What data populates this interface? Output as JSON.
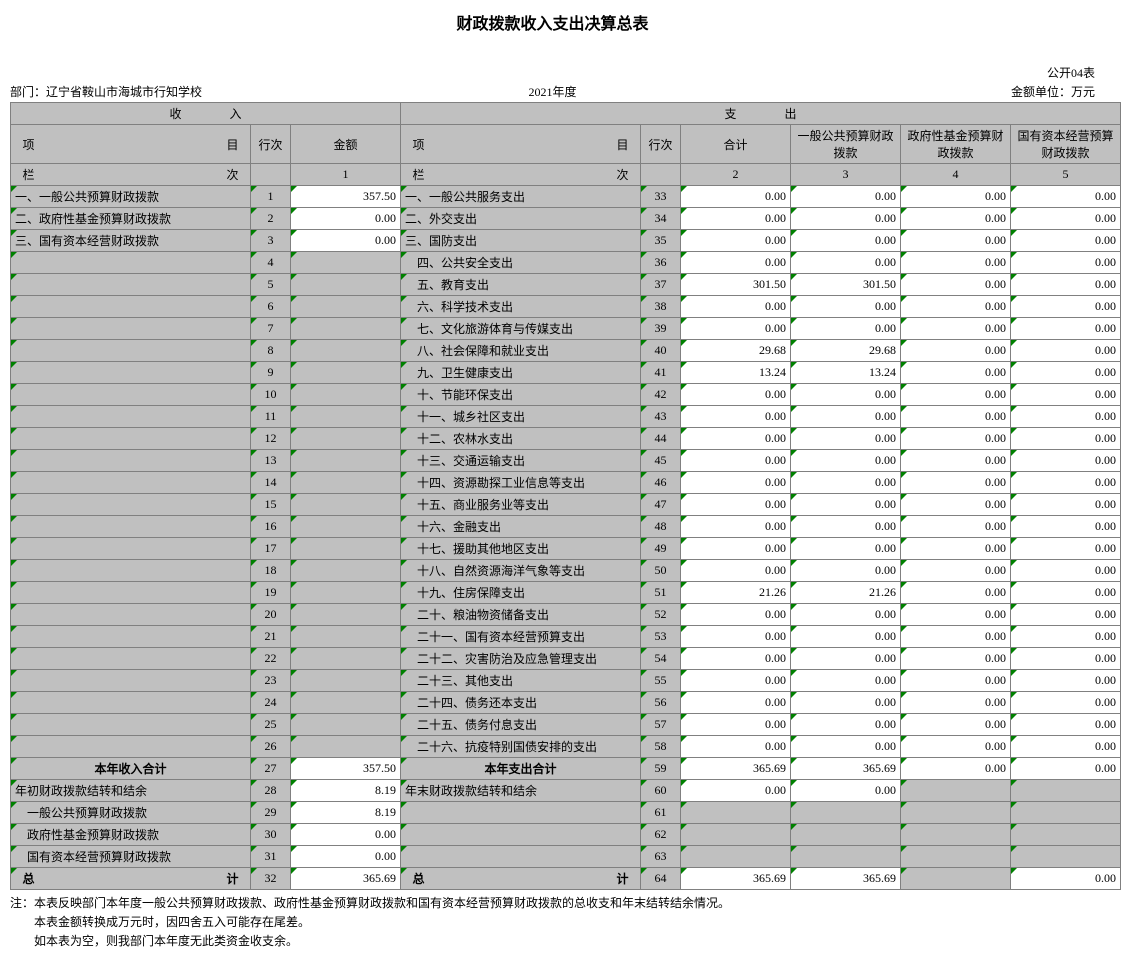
{
  "title": "财政拨款收入支出决算总表",
  "form_code": "公开04表",
  "dept_label": "部门：辽宁省鞍山市海城市行知学校",
  "year": "2021年度",
  "unit": "金额单位：万元",
  "sec_income": "收　　　　入",
  "sec_expense": "支　　　　出",
  "hdr_item_l": "项　　　　　　　　　　　　　　　　目",
  "hdr_row": "行次",
  "hdr_amt": "金额",
  "hdr_item_r": "项　　　　　　　　　　　　　　　　目",
  "hdr_sum": "合计",
  "hdr_c3": "一般公共预算财政拨款",
  "hdr_c4": "政府性基金预算财政拨款",
  "hdr_c5": "国有资本经营预算财政拨款",
  "col_label_l": "栏　　　　　　　　　　　　　　　　次",
  "col_label_r": "栏　　　　　　　　　　　　　　　　次",
  "col1": "1",
  "col2": "2",
  "col3": "3",
  "col4": "4",
  "col5": "5",
  "rows": [
    {
      "li": "一、一般公共预算财政拨款",
      "lr": "1",
      "la": "357.50",
      "ri": "一、一般公共服务支出",
      "rr": "33",
      "s": "0.00",
      "c3": "0.00",
      "c4": "0.00",
      "c5": "0.00"
    },
    {
      "li": "二、政府性基金预算财政拨款",
      "lr": "2",
      "la": "0.00",
      "ri": "二、外交支出",
      "rr": "34",
      "s": "0.00",
      "c3": "0.00",
      "c4": "0.00",
      "c5": "0.00"
    },
    {
      "li": "三、国有资本经营财政拨款",
      "lr": "3",
      "la": "0.00",
      "ri": "三、国防支出",
      "rr": "35",
      "s": "0.00",
      "c3": "0.00",
      "c4": "0.00",
      "c5": "0.00"
    },
    {
      "li": "",
      "lr": "4",
      "la": "",
      "ri": "　四、公共安全支出",
      "rr": "36",
      "s": "0.00",
      "c3": "0.00",
      "c4": "0.00",
      "c5": "0.00"
    },
    {
      "li": "",
      "lr": "5",
      "la": "",
      "ri": "　五、教育支出",
      "rr": "37",
      "s": "301.50",
      "c3": "301.50",
      "c4": "0.00",
      "c5": "0.00"
    },
    {
      "li": "",
      "lr": "6",
      "la": "",
      "ri": "　六、科学技术支出",
      "rr": "38",
      "s": "0.00",
      "c3": "0.00",
      "c4": "0.00",
      "c5": "0.00"
    },
    {
      "li": "",
      "lr": "7",
      "la": "",
      "ri": "　七、文化旅游体育与传媒支出",
      "rr": "39",
      "s": "0.00",
      "c3": "0.00",
      "c4": "0.00",
      "c5": "0.00"
    },
    {
      "li": "",
      "lr": "8",
      "la": "",
      "ri": "　八、社会保障和就业支出",
      "rr": "40",
      "s": "29.68",
      "c3": "29.68",
      "c4": "0.00",
      "c5": "0.00"
    },
    {
      "li": "",
      "lr": "9",
      "la": "",
      "ri": "　九、卫生健康支出",
      "rr": "41",
      "s": "13.24",
      "c3": "13.24",
      "c4": "0.00",
      "c5": "0.00"
    },
    {
      "li": "",
      "lr": "10",
      "la": "",
      "ri": "　十、节能环保支出",
      "rr": "42",
      "s": "0.00",
      "c3": "0.00",
      "c4": "0.00",
      "c5": "0.00"
    },
    {
      "li": "",
      "lr": "11",
      "la": "",
      "ri": "　十一、城乡社区支出",
      "rr": "43",
      "s": "0.00",
      "c3": "0.00",
      "c4": "0.00",
      "c5": "0.00"
    },
    {
      "li": "",
      "lr": "12",
      "la": "",
      "ri": "　十二、农林水支出",
      "rr": "44",
      "s": "0.00",
      "c3": "0.00",
      "c4": "0.00",
      "c5": "0.00"
    },
    {
      "li": "",
      "lr": "13",
      "la": "",
      "ri": "　十三、交通运输支出",
      "rr": "45",
      "s": "0.00",
      "c3": "0.00",
      "c4": "0.00",
      "c5": "0.00"
    },
    {
      "li": "",
      "lr": "14",
      "la": "",
      "ri": "　十四、资源勘探工业信息等支出",
      "rr": "46",
      "s": "0.00",
      "c3": "0.00",
      "c4": "0.00",
      "c5": "0.00"
    },
    {
      "li": "",
      "lr": "15",
      "la": "",
      "ri": "　十五、商业服务业等支出",
      "rr": "47",
      "s": "0.00",
      "c3": "0.00",
      "c4": "0.00",
      "c5": "0.00"
    },
    {
      "li": "",
      "lr": "16",
      "la": "",
      "ri": "　十六、金融支出",
      "rr": "48",
      "s": "0.00",
      "c3": "0.00",
      "c4": "0.00",
      "c5": "0.00"
    },
    {
      "li": "",
      "lr": "17",
      "la": "",
      "ri": "　十七、援助其他地区支出",
      "rr": "49",
      "s": "0.00",
      "c3": "0.00",
      "c4": "0.00",
      "c5": "0.00"
    },
    {
      "li": "",
      "lr": "18",
      "la": "",
      "ri": "　十八、自然资源海洋气象等支出",
      "rr": "50",
      "s": "0.00",
      "c3": "0.00",
      "c4": "0.00",
      "c5": "0.00"
    },
    {
      "li": "",
      "lr": "19",
      "la": "",
      "ri": "　十九、住房保障支出",
      "rr": "51",
      "s": "21.26",
      "c3": "21.26",
      "c4": "0.00",
      "c5": "0.00"
    },
    {
      "li": "",
      "lr": "20",
      "la": "",
      "ri": "　二十、粮油物资储备支出",
      "rr": "52",
      "s": "0.00",
      "c3": "0.00",
      "c4": "0.00",
      "c5": "0.00"
    },
    {
      "li": "",
      "lr": "21",
      "la": "",
      "ri": "　二十一、国有资本经营预算支出",
      "rr": "53",
      "s": "0.00",
      "c3": "0.00",
      "c4": "0.00",
      "c5": "0.00"
    },
    {
      "li": "",
      "lr": "22",
      "la": "",
      "ri": "　二十二、灾害防治及应急管理支出",
      "rr": "54",
      "s": "0.00",
      "c3": "0.00",
      "c4": "0.00",
      "c5": "0.00"
    },
    {
      "li": "",
      "lr": "23",
      "la": "",
      "ri": "　二十三、其他支出",
      "rr": "55",
      "s": "0.00",
      "c3": "0.00",
      "c4": "0.00",
      "c5": "0.00"
    },
    {
      "li": "",
      "lr": "24",
      "la": "",
      "ri": "　二十四、债务还本支出",
      "rr": "56",
      "s": "0.00",
      "c3": "0.00",
      "c4": "0.00",
      "c5": "0.00"
    },
    {
      "li": "",
      "lr": "25",
      "la": "",
      "ri": "　二十五、债务付息支出",
      "rr": "57",
      "s": "0.00",
      "c3": "0.00",
      "c4": "0.00",
      "c5": "0.00"
    },
    {
      "li": "",
      "lr": "26",
      "la": "",
      "ri": "　二十六、抗疫特别国债安排的支出",
      "rr": "58",
      "s": "0.00",
      "c3": "0.00",
      "c4": "0.00",
      "c5": "0.00"
    }
  ],
  "subtotal": {
    "li": "本年收入合计",
    "lr": "27",
    "la": "357.50",
    "ri": "本年支出合计",
    "rr": "59",
    "s": "365.69",
    "c3": "365.69",
    "c4": "0.00",
    "c5": "0.00"
  },
  "carry": [
    {
      "li": "年初财政拨款结转和结余",
      "lr": "28",
      "la": "8.19",
      "ri": "年末财政拨款结转和结余",
      "rr": "60",
      "s": "0.00",
      "c3": "0.00",
      "c4": "",
      "c5": ""
    },
    {
      "li": "　一般公共预算财政拨款",
      "lr": "29",
      "la": "8.19",
      "ri": "",
      "rr": "61",
      "s": "",
      "c3": "",
      "c4": "",
      "c5": ""
    },
    {
      "li": "　政府性基金预算财政拨款",
      "lr": "30",
      "la": "0.00",
      "ri": "",
      "rr": "62",
      "s": "",
      "c3": "",
      "c4": "",
      "c5": ""
    },
    {
      "li": "　国有资本经营预算财政拨款",
      "lr": "31",
      "la": "0.00",
      "ri": "",
      "rr": "63",
      "s": "",
      "c3": "",
      "c4": "",
      "c5": ""
    }
  ],
  "total": {
    "li": "总　　　　　　　　　　　　　　　　计",
    "lr": "32",
    "la": "365.69",
    "ri": "总　　　　　　　　　　　　　　　　计",
    "rr": "64",
    "s": "365.69",
    "c3": "365.69",
    "c4": "",
    "c5": "0.00"
  },
  "notes": [
    "注：本表反映部门本年度一般公共预算财政拨款、政府性基金预算财政拨款和国有资本经营预算财政拨款的总收支和年末结转结余情况。",
    "　　本表金额转换成万元时，因四舍五入可能存在尾差。",
    "　　如本表为空，则我部门本年度无此类资金收支余。"
  ]
}
